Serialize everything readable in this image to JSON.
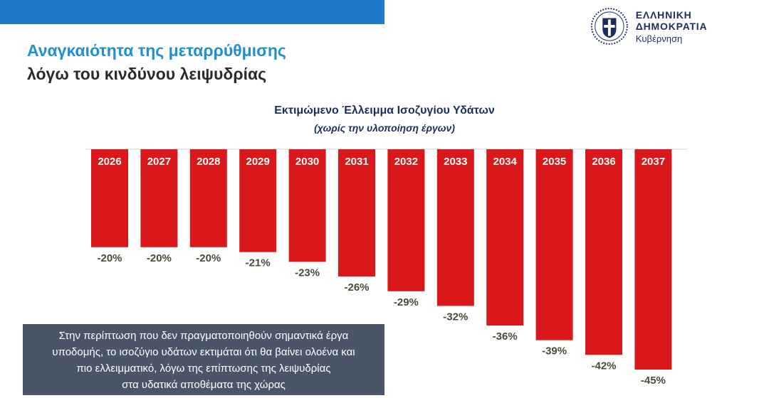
{
  "header": {
    "logo_title": "ΕΛΛΗΝΙΚΗ ΔΗΜΟΚΡΑΤΙΑ",
    "logo_subtitle": "Κυβέρνηση",
    "accent_color": "#1f78c8"
  },
  "slide": {
    "title_line1": "Αναγκαιότητα της μεταρρύθμισης",
    "title_line2": "λόγω του κινδύνου λειψυδρίας"
  },
  "chart_data": {
    "type": "bar",
    "title": "Εκτιμώμενο Έλλειμμα Ισοζυγίου Υδάτων",
    "subtitle": "(χωρίς την υλοποίηση έργων)",
    "categories": [
      "2026",
      "2027",
      "2028",
      "2029",
      "2030",
      "2031",
      "2032",
      "2033",
      "2034",
      "2035",
      "2036",
      "2037"
    ],
    "values": [
      -20,
      -20,
      -20,
      -21,
      -23,
      -26,
      -29,
      -32,
      -36,
      -39,
      -42,
      -45
    ],
    "value_labels": [
      "-20%",
      "-20%",
      "-20%",
      "-21%",
      "-23%",
      "-26%",
      "-29%",
      "-32%",
      "-36%",
      "-39%",
      "-42%",
      "-45%"
    ],
    "unit": "%",
    "bar_color": "#d9181c",
    "ylim": [
      -45,
      0
    ],
    "grid": false,
    "legend": "none"
  },
  "note": {
    "lines": [
      "Στην περίπτωση που δεν πραγματοποιηθούν σημαντικά έργα",
      "υποδομής, το ισοζύγιο υδάτων εκτιμάται ότι θα βαίνει ολοένα και",
      "πιο ελλειμματικό, λόγω της επίπτωσης της λειψυδρίας",
      "στα υδατικά αποθέματα της χώρας"
    ]
  }
}
